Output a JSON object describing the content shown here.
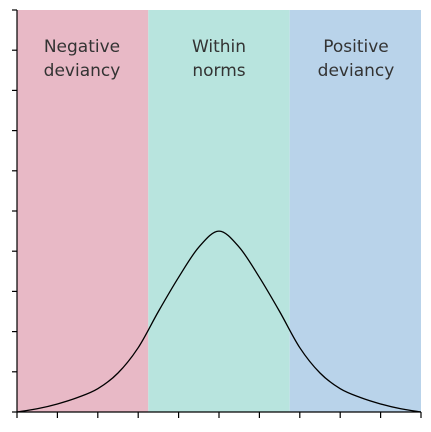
{
  "regions": [
    {
      "id": "negative",
      "label_lines": [
        "Negative",
        "deviancy"
      ],
      "color": "#e8b9c6"
    },
    {
      "id": "within",
      "label_lines": [
        "Within",
        "norms"
      ],
      "color": "#b8e4de"
    },
    {
      "id": "positive",
      "label_lines": [
        "Positive",
        "deviancy"
      ],
      "color": "#b9d3ea"
    }
  ],
  "chart_data": {
    "type": "line",
    "title": "",
    "xlabel": "",
    "ylabel": "",
    "tick_labels": [],
    "curve": "normal-distribution",
    "series": [
      {
        "x": [
          -5,
          -4.5,
          -4,
          -3.5,
          -3,
          -2.5,
          -2,
          -1.5,
          -1,
          -0.5,
          0,
          0.5,
          1,
          1.5,
          2,
          2.5,
          3,
          3.5,
          4,
          4.5,
          5
        ],
        "y": [
          0,
          0.08,
          0.2,
          0.36,
          0.58,
          0.97,
          1.6,
          2.5,
          3.35,
          4.1,
          4.5,
          4.1,
          3.35,
          2.5,
          1.6,
          0.97,
          0.58,
          0.36,
          0.2,
          0.08,
          0
        ]
      }
    ],
    "xlim": [
      -5,
      5
    ],
    "ylim": [
      0,
      10
    ],
    "x_tick_count": 11,
    "y_tick_count": 11,
    "band_edges": [
      -5,
      -1.75,
      1.75,
      5
    ],
    "colors": {
      "curve": "#000000",
      "axis": "#000000"
    }
  }
}
